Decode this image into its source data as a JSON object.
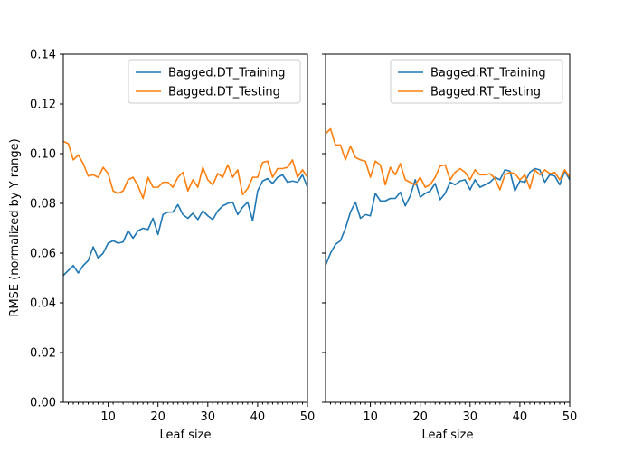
{
  "chart_data": [
    {
      "type": "line",
      "xlabel": "Leaf size",
      "ylabel": "RMSE (normalized by Y range)",
      "xlim": [
        1,
        50
      ],
      "ylim": [
        0,
        0.14
      ],
      "xticks": [
        "10",
        "20",
        "30",
        "40",
        "50"
      ],
      "yticks": [
        "0.00",
        "0.02",
        "0.04",
        "0.06",
        "0.08",
        "0.10",
        "0.12",
        "0.14"
      ],
      "legend_position": "top-right",
      "grid": false,
      "x": [
        1,
        2,
        3,
        4,
        5,
        6,
        7,
        8,
        9,
        10,
        11,
        12,
        13,
        14,
        15,
        16,
        17,
        18,
        19,
        20,
        21,
        22,
        23,
        24,
        25,
        26,
        27,
        28,
        29,
        30,
        31,
        32,
        33,
        34,
        35,
        36,
        37,
        38,
        39,
        40,
        41,
        42,
        43,
        44,
        45,
        46,
        47,
        48,
        49,
        50
      ],
      "series": [
        {
          "name": "Bagged.DT_Training",
          "color": "#1f77b4",
          "values": [
            0.051,
            0.053,
            0.055,
            0.052,
            0.055,
            0.057,
            0.0625,
            0.058,
            0.06,
            0.064,
            0.065,
            0.064,
            0.0645,
            0.069,
            0.066,
            0.069,
            0.07,
            0.0695,
            0.074,
            0.0675,
            0.0755,
            0.0765,
            0.0765,
            0.0795,
            0.0755,
            0.074,
            0.076,
            0.0735,
            0.077,
            0.075,
            0.0735,
            0.077,
            0.079,
            0.08,
            0.0805,
            0.0755,
            0.0785,
            0.0805,
            0.073,
            0.085,
            0.089,
            0.09,
            0.088,
            0.0905,
            0.0915,
            0.0885,
            0.089,
            0.0885,
            0.0915,
            0.0865
          ]
        },
        {
          "name": "Bagged.DT_Testing",
          "color": "#ff7f0e",
          "values": [
            0.105,
            0.104,
            0.0975,
            0.0995,
            0.096,
            0.091,
            0.0915,
            0.0905,
            0.0945,
            0.092,
            0.085,
            0.084,
            0.085,
            0.0895,
            0.0905,
            0.087,
            0.082,
            0.0905,
            0.0865,
            0.0865,
            0.0885,
            0.0885,
            0.0865,
            0.0905,
            0.0925,
            0.085,
            0.0895,
            0.0865,
            0.0945,
            0.0895,
            0.0875,
            0.092,
            0.0905,
            0.0955,
            0.0905,
            0.0935,
            0.0835,
            0.086,
            0.0905,
            0.0905,
            0.0965,
            0.097,
            0.0905,
            0.094,
            0.094,
            0.0945,
            0.0975,
            0.0905,
            0.0935,
            0.0905
          ]
        }
      ]
    },
    {
      "type": "line",
      "xlabel": "Leaf size",
      "ylabel": "",
      "xlim": [
        1,
        50
      ],
      "ylim": [
        0,
        0.14
      ],
      "xticks": [
        "10",
        "20",
        "30",
        "40",
        "50"
      ],
      "legend_position": "top-right",
      "grid": false,
      "x": [
        1,
        2,
        3,
        4,
        5,
        6,
        7,
        8,
        9,
        10,
        11,
        12,
        13,
        14,
        15,
        16,
        17,
        18,
        19,
        20,
        21,
        22,
        23,
        24,
        25,
        26,
        27,
        28,
        29,
        30,
        31,
        32,
        33,
        34,
        35,
        36,
        37,
        38,
        39,
        40,
        41,
        42,
        43,
        44,
        45,
        46,
        47,
        48,
        49,
        50
      ],
      "series": [
        {
          "name": "Bagged.RT_Training",
          "color": "#1f77b4",
          "values": [
            0.055,
            0.06,
            0.0635,
            0.065,
            0.07,
            0.0765,
            0.0805,
            0.074,
            0.0755,
            0.075,
            0.084,
            0.081,
            0.081,
            0.082,
            0.082,
            0.0845,
            0.079,
            0.083,
            0.0895,
            0.0825,
            0.084,
            0.085,
            0.088,
            0.0815,
            0.084,
            0.0885,
            0.0875,
            0.089,
            0.0895,
            0.0855,
            0.0895,
            0.0865,
            0.0875,
            0.0885,
            0.0905,
            0.0895,
            0.0935,
            0.093,
            0.085,
            0.089,
            0.0885,
            0.0925,
            0.094,
            0.0935,
            0.0885,
            0.0915,
            0.091,
            0.0875,
            0.093,
            0.0895
          ]
        },
        {
          "name": "Bagged.RT_Testing",
          "color": "#ff7f0e",
          "values": [
            0.108,
            0.11,
            0.1035,
            0.1035,
            0.0975,
            0.103,
            0.0985,
            0.0975,
            0.097,
            0.0905,
            0.097,
            0.0955,
            0.0875,
            0.0945,
            0.0915,
            0.096,
            0.0895,
            0.0885,
            0.0875,
            0.0905,
            0.0865,
            0.0875,
            0.0905,
            0.095,
            0.0955,
            0.0895,
            0.0925,
            0.094,
            0.0925,
            0.0895,
            0.0935,
            0.0915,
            0.0915,
            0.092,
            0.09,
            0.0855,
            0.0915,
            0.0925,
            0.092,
            0.0895,
            0.0915,
            0.086,
            0.0935,
            0.0915,
            0.0935,
            0.092,
            0.0925,
            0.0895,
            0.0935,
            0.0905
          ]
        }
      ]
    }
  ]
}
